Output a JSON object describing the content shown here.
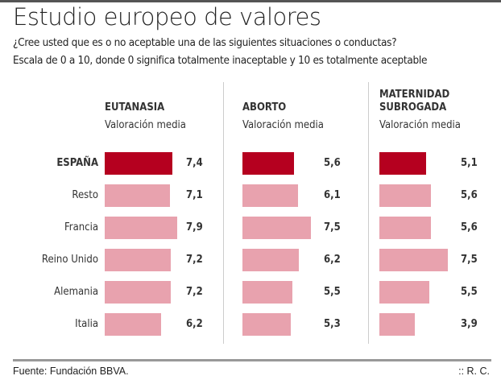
{
  "title": "Estudio europeo de valores",
  "subtitle_lines": [
    "¿Cree usted que es o no aceptable una de las siguientes situaciones o conductas?",
    "Escala de 0 a 10, donde 0 significa totalmente inaceptable y 10 es totalmente aceptable"
  ],
  "colors": {
    "highlight": "#b5001f",
    "default": "#e8a2ae"
  },
  "chart_data": {
    "type": "bar",
    "orientation": "horizontal",
    "xlim": [
      0,
      10
    ],
    "categories": [
      "ESPAÑA",
      "Resto",
      "Francia",
      "Reino Unido",
      "Alemania",
      "Italia"
    ],
    "highlight_category": "ESPAÑA",
    "value_label": "Valoración media",
    "series": [
      {
        "name": "EUTANASIA",
        "values": [
          7.4,
          7.1,
          7.9,
          7.2,
          7.2,
          6.2
        ],
        "labels": [
          "7,4",
          "7,1",
          "7,9",
          "7,2",
          "7,2",
          "6,2"
        ]
      },
      {
        "name": "ABORTO",
        "values": [
          5.6,
          6.1,
          7.5,
          6.2,
          5.5,
          5.3
        ],
        "labels": [
          "5,6",
          "6,1",
          "7,5",
          "6,2",
          "5,5",
          "5,3"
        ]
      },
      {
        "name": "MATERNIDAD SUBROGADA",
        "values": [
          5.1,
          5.6,
          5.6,
          7.5,
          5.5,
          3.9
        ],
        "labels": [
          "5,1",
          "5,6",
          "5,6",
          "7,5",
          "5,5",
          "3,9"
        ]
      }
    ]
  },
  "footer": {
    "source": "Fuente: Fundación BBVA.",
    "credit": ":: R. C."
  }
}
